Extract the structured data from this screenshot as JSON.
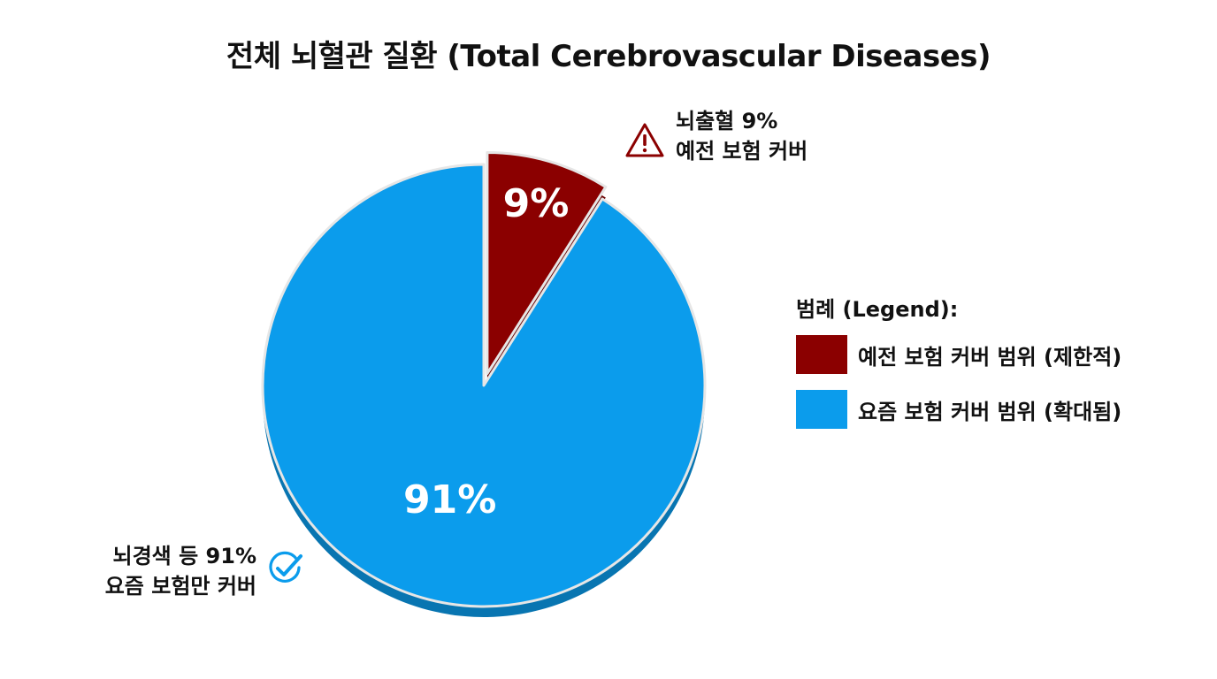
{
  "chart_data": {
    "type": "pie",
    "title": "전체 뇌혈관 질환 (Total Cerebrovascular Diseases)",
    "slices": [
      {
        "label": "뇌출혈",
        "value": 9,
        "display": "9%",
        "color": "#8b0000",
        "exploded": true
      },
      {
        "label": "뇌경색 등",
        "value": 91,
        "display": "91%",
        "color": "#0b9cec",
        "exploded": false
      }
    ],
    "annotations": [
      {
        "lines": [
          "뇌출혈 9%",
          "예전 보험 커버"
        ],
        "icon": "warning-icon",
        "color": "#8b0000"
      },
      {
        "lines": [
          "뇌경색 등 91%",
          "요즘 보험만 커버"
        ],
        "icon": "check-circle-icon",
        "color": "#0b9cec"
      }
    ],
    "legend": {
      "title": "범례 (Legend):",
      "placement": "right",
      "items": [
        {
          "label": "예전 보험 커버 범위 (제한적)",
          "color": "#8b0000"
        },
        {
          "label": "요즘 보험 커버 범위 (확대됨)",
          "color": "#0b9cec"
        }
      ]
    }
  }
}
